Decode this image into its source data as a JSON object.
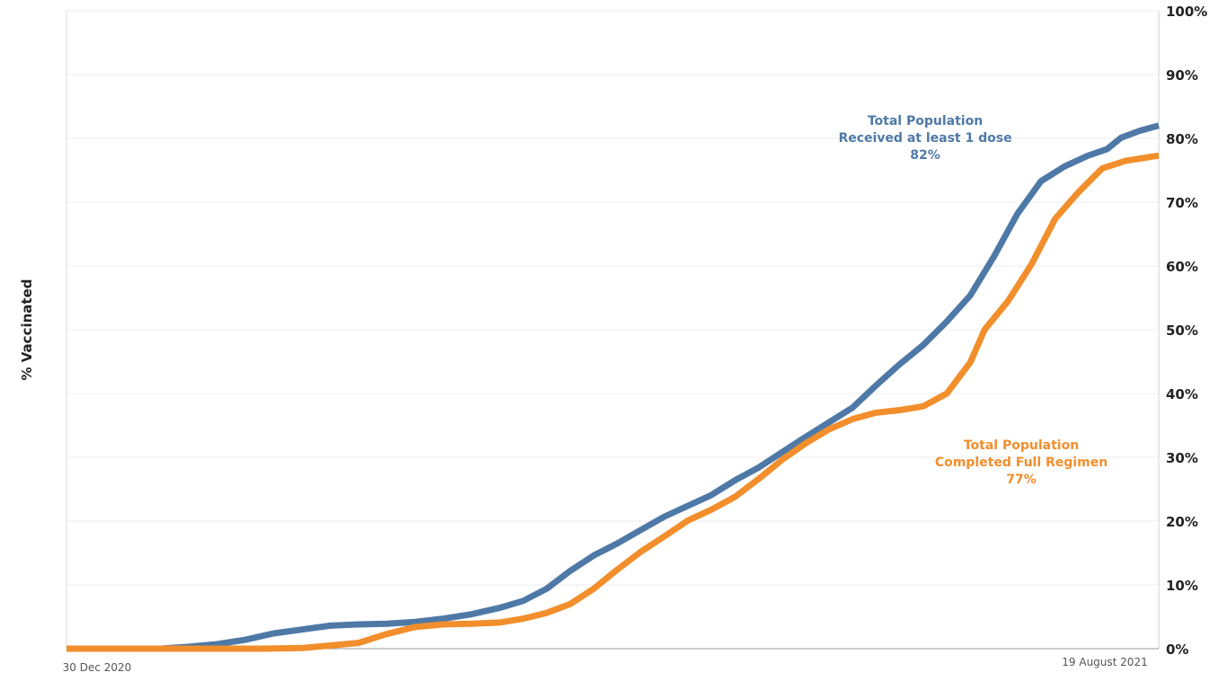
{
  "chart_data": {
    "type": "line",
    "ylabel": "% Vaccinated",
    "yticks": [
      "0%",
      "10%",
      "20%",
      "30%",
      "40%",
      "50%",
      "60%",
      "70%",
      "80%",
      "90%",
      "100%"
    ],
    "ylim": [
      0,
      100
    ],
    "xlim": [
      "2020-12-30",
      "2021-08-19"
    ],
    "x_tick_labels": [
      "30 Dec 2020",
      "19 August 2021"
    ],
    "grid": "horizontal",
    "colors": {
      "first_dose": "#4e79a7",
      "full_regimen": "#f28e2b"
    },
    "series": [
      {
        "key": "first_dose",
        "annotation": [
          "Total Population",
          "Received at least 1 dose",
          "82%"
        ],
        "points": [
          [
            "2020-12-30",
            0
          ],
          [
            "2021-01-19",
            0
          ],
          [
            "2021-01-25",
            0.3
          ],
          [
            "2021-01-31",
            0.7
          ],
          [
            "2021-02-06",
            1.4
          ],
          [
            "2021-02-12",
            2.4
          ],
          [
            "2021-02-18",
            3.0
          ],
          [
            "2021-02-24",
            3.6
          ],
          [
            "2021-03-02",
            3.8
          ],
          [
            "2021-03-08",
            3.9
          ],
          [
            "2021-03-14",
            4.2
          ],
          [
            "2021-03-20",
            4.7
          ],
          [
            "2021-03-26",
            5.4
          ],
          [
            "2021-04-01",
            6.4
          ],
          [
            "2021-04-06",
            7.5
          ],
          [
            "2021-04-11",
            9.4
          ],
          [
            "2021-04-16",
            12.2
          ],
          [
            "2021-04-21",
            14.6
          ],
          [
            "2021-04-26",
            16.5
          ],
          [
            "2021-05-01",
            18.6
          ],
          [
            "2021-05-06",
            20.7
          ],
          [
            "2021-05-11",
            22.4
          ],
          [
            "2021-05-16",
            24.1
          ],
          [
            "2021-05-21",
            26.4
          ],
          [
            "2021-05-26",
            28.4
          ],
          [
            "2021-05-31",
            30.8
          ],
          [
            "2021-06-05",
            33.2
          ],
          [
            "2021-06-10",
            35.5
          ],
          [
            "2021-06-15",
            37.8
          ],
          [
            "2021-06-20",
            41.3
          ],
          [
            "2021-06-25",
            44.6
          ],
          [
            "2021-06-30",
            47.6
          ],
          [
            "2021-07-05",
            51.3
          ],
          [
            "2021-07-10",
            55.4
          ],
          [
            "2021-07-15",
            61.5
          ],
          [
            "2021-07-20",
            68.2
          ],
          [
            "2021-07-25",
            73.3
          ],
          [
            "2021-07-30",
            75.6
          ],
          [
            "2021-08-04",
            77.3
          ],
          [
            "2021-08-08",
            78.3
          ],
          [
            "2021-08-11",
            80.1
          ],
          [
            "2021-08-15",
            81.2
          ],
          [
            "2021-08-19",
            82.0
          ]
        ]
      },
      {
        "key": "full_regimen",
        "annotation": [
          "Total Population",
          "Completed Full Regimen",
          "77%"
        ],
        "points": [
          [
            "2020-12-30",
            0
          ],
          [
            "2021-02-10",
            0
          ],
          [
            "2021-02-18",
            0.1
          ],
          [
            "2021-02-24",
            0.5
          ],
          [
            "2021-03-02",
            0.9
          ],
          [
            "2021-03-08",
            2.3
          ],
          [
            "2021-03-14",
            3.4
          ],
          [
            "2021-03-20",
            3.8
          ],
          [
            "2021-03-26",
            3.9
          ],
          [
            "2021-04-01",
            4.1
          ],
          [
            "2021-04-06",
            4.7
          ],
          [
            "2021-04-11",
            5.6
          ],
          [
            "2021-04-16",
            7.0
          ],
          [
            "2021-04-21",
            9.4
          ],
          [
            "2021-04-26",
            12.4
          ],
          [
            "2021-05-01",
            15.2
          ],
          [
            "2021-05-06",
            17.6
          ],
          [
            "2021-05-11",
            20.1
          ],
          [
            "2021-05-16",
            21.8
          ],
          [
            "2021-05-21",
            23.8
          ],
          [
            "2021-05-26",
            26.6
          ],
          [
            "2021-05-31",
            29.6
          ],
          [
            "2021-06-05",
            32.2
          ],
          [
            "2021-06-10",
            34.4
          ],
          [
            "2021-06-15",
            36.0
          ],
          [
            "2021-06-20",
            37.0
          ],
          [
            "2021-06-25",
            37.4
          ],
          [
            "2021-06-30",
            38.0
          ],
          [
            "2021-07-05",
            40.0
          ],
          [
            "2021-07-10",
            44.9
          ],
          [
            "2021-07-13",
            50.0
          ],
          [
            "2021-07-18",
            54.5
          ],
          [
            "2021-07-23",
            60.3
          ],
          [
            "2021-07-28",
            67.4
          ],
          [
            "2021-08-02",
            71.6
          ],
          [
            "2021-08-07",
            75.3
          ],
          [
            "2021-08-12",
            76.5
          ],
          [
            "2021-08-19",
            77.3
          ]
        ]
      }
    ]
  }
}
